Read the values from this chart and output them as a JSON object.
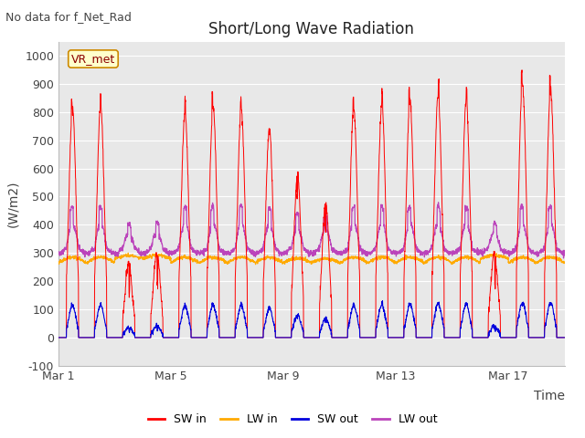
{
  "title": "Short/Long Wave Radiation",
  "ylabel": "(W/m2)",
  "xlabel": "Time",
  "top_label": "No data for f_Net_Rad",
  "station_label": "VR_met",
  "ylim": [
    -100,
    1050
  ],
  "yticks": [
    -100,
    0,
    100,
    200,
    300,
    400,
    500,
    600,
    700,
    800,
    900,
    1000
  ],
  "xtick_labels": [
    "Mar 1",
    "Mar 5",
    "Mar 9",
    "Mar 13",
    "Mar 17"
  ],
  "xtick_positions": [
    0,
    4,
    8,
    12,
    16
  ],
  "colors": {
    "SW_in": "#ff0000",
    "LW_in": "#ffaa00",
    "SW_out": "#0000dd",
    "LW_out": "#bb44bb"
  },
  "legend_labels": [
    "SW in",
    "LW in",
    "SW out",
    "LW out"
  ],
  "plot_bg_color": "#e8e8e8",
  "n_days": 18,
  "n_points_per_day": 144,
  "figsize": [
    6.4,
    4.8
  ],
  "dpi": 100,
  "subplots_adjust": [
    0.1,
    0.965,
    0.905,
    0.165
  ]
}
